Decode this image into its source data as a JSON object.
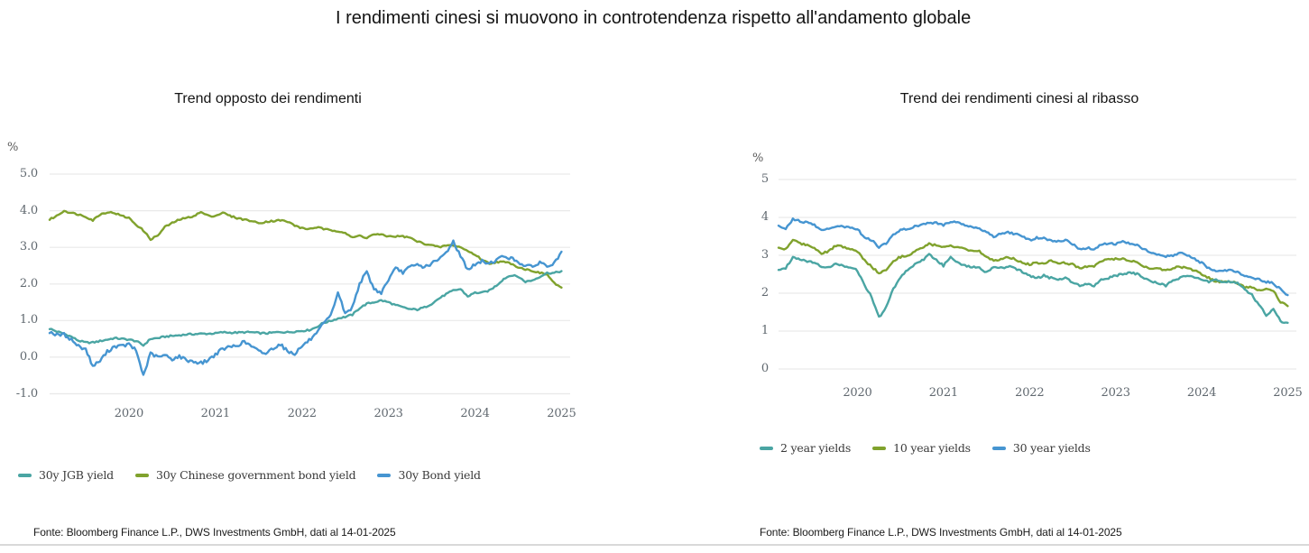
{
  "header": {
    "title": "I rendimenti cinesi si muovono in controtendenza rispetto all'andamento globale"
  },
  "style": {
    "grid_color": "#e9e9e9",
    "axis_text_color": "#60686f",
    "title_color": "#141414",
    "teal": "#4aa5a3",
    "olive": "#80a22d",
    "blue": "#4695d1"
  },
  "chart_data": [
    {
      "type": "line",
      "title": "Trend opposto dei rendimenti",
      "ylabel": "%",
      "source": "Fonte: Bloomberg Finance L.P., DWS Investments GmbH, dati al 14-01-2025",
      "grid": true,
      "legend_position": "bottom-left",
      "ylim": [
        -1.0,
        5.0
      ],
      "x_range": [
        2019.083,
        2025.1
      ],
      "x_step_years": 0.08333,
      "first_point": "2019-02",
      "last_point": "2025-01",
      "y_ticks": [
        {
          "value": 5,
          "label": "5.0"
        },
        {
          "value": 4,
          "label": "4.0"
        },
        {
          "value": 3,
          "label": "3.0"
        },
        {
          "value": 2,
          "label": "2.0"
        },
        {
          "value": 1,
          "label": "1.0"
        },
        {
          "value": 0,
          "label": "0.0"
        },
        {
          "value": -1,
          "label": "-1.0"
        }
      ],
      "x_ticks": [
        {
          "value": 2020,
          "label": "2020"
        },
        {
          "value": 2021,
          "label": "2021"
        },
        {
          "value": 2022,
          "label": "2022"
        },
        {
          "value": 2023,
          "label": "2023"
        },
        {
          "value": 2024,
          "label": "2024"
        },
        {
          "value": 2025,
          "label": "2025"
        }
      ],
      "series": [
        {
          "name": "30y JGB yield",
          "color": "#4aa5a3",
          "values": [
            0.78,
            0.7,
            0.64,
            0.56,
            0.45,
            0.4,
            0.4,
            0.44,
            0.48,
            0.52,
            0.5,
            0.48,
            0.44,
            0.32,
            0.5,
            0.52,
            0.56,
            0.58,
            0.6,
            0.62,
            0.63,
            0.64,
            0.64,
            0.65,
            0.68,
            0.67,
            0.67,
            0.68,
            0.68,
            0.66,
            0.65,
            0.67,
            0.69,
            0.68,
            0.7,
            0.72,
            0.74,
            0.82,
            0.94,
            0.99,
            1.06,
            1.1,
            1.16,
            1.34,
            1.46,
            1.5,
            1.55,
            1.5,
            1.42,
            1.36,
            1.31,
            1.3,
            1.36,
            1.46,
            1.6,
            1.72,
            1.82,
            1.86,
            1.66,
            1.76,
            1.76,
            1.82,
            1.96,
            2.14,
            2.24,
            2.2,
            2.06,
            2.1,
            2.2,
            2.3,
            2.3,
            2.35
          ]
        },
        {
          "name": "30y Chinese government bond yield",
          "color": "#80a22d",
          "values": [
            3.76,
            3.86,
            4.0,
            3.94,
            3.9,
            3.84,
            3.74,
            3.9,
            3.96,
            3.94,
            3.86,
            3.8,
            3.62,
            3.46,
            3.22,
            3.32,
            3.56,
            3.66,
            3.76,
            3.8,
            3.86,
            3.96,
            3.86,
            3.86,
            3.95,
            3.86,
            3.8,
            3.76,
            3.72,
            3.66,
            3.7,
            3.72,
            3.74,
            3.7,
            3.6,
            3.52,
            3.5,
            3.55,
            3.5,
            3.46,
            3.45,
            3.4,
            3.26,
            3.32,
            3.26,
            3.36,
            3.34,
            3.3,
            3.3,
            3.3,
            3.26,
            3.16,
            3.1,
            3.06,
            3.0,
            3.05,
            3.06,
            3.0,
            2.9,
            2.8,
            2.66,
            2.56,
            2.6,
            2.6,
            2.56,
            2.46,
            2.4,
            2.36,
            2.3,
            2.26,
            2.02,
            1.9
          ]
        },
        {
          "name": "30y Bond yield",
          "color": "#4695d1",
          "values": [
            0.7,
            0.6,
            0.62,
            0.48,
            0.3,
            0.22,
            -0.25,
            -0.1,
            0.15,
            0.3,
            0.3,
            0.35,
            0.18,
            -0.5,
            0.1,
            0.0,
            0.05,
            -0.05,
            0.02,
            -0.08,
            -0.12,
            -0.16,
            -0.08,
            0.08,
            0.22,
            0.28,
            0.32,
            0.42,
            0.3,
            0.16,
            0.1,
            0.25,
            0.36,
            0.16,
            0.1,
            0.3,
            0.46,
            0.62,
            0.92,
            1.12,
            1.78,
            1.18,
            1.36,
            2.02,
            2.32,
            1.86,
            1.76,
            2.12,
            2.42,
            2.32,
            2.46,
            2.52,
            2.46,
            2.56,
            2.66,
            2.86,
            3.16,
            2.76,
            2.4,
            2.52,
            2.62,
            2.56,
            2.66,
            2.76,
            2.7,
            2.6,
            2.5,
            2.46,
            2.6,
            2.48,
            2.56,
            2.88
          ]
        }
      ]
    },
    {
      "type": "line",
      "title": "Trend dei rendimenti cinesi al ribasso",
      "ylabel": "%",
      "source": "Fonte: Bloomberg Finance L.P., DWS Investments GmbH, dati al 14-01-2025",
      "grid": true,
      "legend_position": "bottom-left",
      "ylim": [
        0,
        5
      ],
      "x_range": [
        2019.083,
        2025.1
      ],
      "x_step_years": 0.08333,
      "first_point": "2019-02",
      "last_point": "2025-01",
      "y_ticks": [
        {
          "value": 5,
          "label": "5"
        },
        {
          "value": 4,
          "label": "4"
        },
        {
          "value": 3,
          "label": "3"
        },
        {
          "value": 2,
          "label": "2"
        },
        {
          "value": 1,
          "label": "1"
        },
        {
          "value": 0,
          "label": "0"
        }
      ],
      "x_ticks": [
        {
          "value": 2020,
          "label": "2020"
        },
        {
          "value": 2021,
          "label": "2021"
        },
        {
          "value": 2022,
          "label": "2022"
        },
        {
          "value": 2023,
          "label": "2023"
        },
        {
          "value": 2024,
          "label": "2024"
        },
        {
          "value": 2025,
          "label": "2025"
        }
      ],
      "series": [
        {
          "name": "2 year yields",
          "color": "#4aa5a3",
          "values": [
            2.62,
            2.66,
            2.96,
            2.9,
            2.85,
            2.8,
            2.7,
            2.7,
            2.76,
            2.72,
            2.7,
            2.6,
            2.2,
            1.9,
            1.36,
            1.62,
            2.12,
            2.42,
            2.62,
            2.76,
            2.86,
            3.02,
            2.88,
            2.72,
            2.96,
            2.82,
            2.72,
            2.7,
            2.66,
            2.56,
            2.7,
            2.66,
            2.7,
            2.66,
            2.56,
            2.46,
            2.4,
            2.46,
            2.4,
            2.36,
            2.4,
            2.3,
            2.2,
            2.26,
            2.2,
            2.36,
            2.4,
            2.46,
            2.5,
            2.56,
            2.5,
            2.4,
            2.3,
            2.26,
            2.2,
            2.36,
            2.4,
            2.46,
            2.4,
            2.36,
            2.3,
            2.36,
            2.3,
            2.3,
            2.26,
            2.1,
            1.95,
            1.7,
            1.42,
            1.56,
            1.26,
            1.22
          ]
        },
        {
          "name": "10 year yields",
          "color": "#80a22d",
          "values": [
            3.2,
            3.16,
            3.42,
            3.32,
            3.26,
            3.2,
            3.06,
            3.1,
            3.26,
            3.22,
            3.16,
            3.1,
            2.86,
            2.7,
            2.52,
            2.62,
            2.86,
            2.96,
            3.0,
            3.1,
            3.2,
            3.3,
            3.26,
            3.2,
            3.26,
            3.2,
            3.16,
            3.1,
            3.1,
            2.96,
            2.86,
            2.9,
            2.96,
            2.9,
            2.8,
            2.76,
            2.8,
            2.8,
            2.85,
            2.8,
            2.8,
            2.76,
            2.66,
            2.7,
            2.7,
            2.86,
            2.9,
            2.9,
            2.9,
            2.86,
            2.8,
            2.7,
            2.66,
            2.65,
            2.6,
            2.66,
            2.7,
            2.66,
            2.6,
            2.5,
            2.4,
            2.3,
            2.3,
            2.3,
            2.26,
            2.16,
            2.15,
            2.06,
            2.1,
            2.06,
            1.76,
            1.66
          ]
        },
        {
          "name": "30 year yields",
          "color": "#4695d1",
          "values": [
            3.76,
            3.7,
            3.96,
            3.9,
            3.86,
            3.8,
            3.66,
            3.7,
            3.76,
            3.76,
            3.74,
            3.7,
            3.46,
            3.4,
            3.22,
            3.32,
            3.56,
            3.66,
            3.7,
            3.76,
            3.8,
            3.86,
            3.86,
            3.8,
            3.9,
            3.86,
            3.8,
            3.76,
            3.7,
            3.6,
            3.5,
            3.56,
            3.6,
            3.56,
            3.5,
            3.4,
            3.46,
            3.45,
            3.4,
            3.36,
            3.4,
            3.3,
            3.16,
            3.2,
            3.16,
            3.3,
            3.3,
            3.3,
            3.36,
            3.3,
            3.26,
            3.16,
            3.06,
            3.0,
            2.96,
            3.0,
            3.06,
            3.0,
            2.9,
            2.8,
            2.66,
            2.56,
            2.6,
            2.6,
            2.56,
            2.46,
            2.4,
            2.36,
            2.3,
            2.26,
            2.1,
            1.95
          ]
        }
      ]
    }
  ]
}
